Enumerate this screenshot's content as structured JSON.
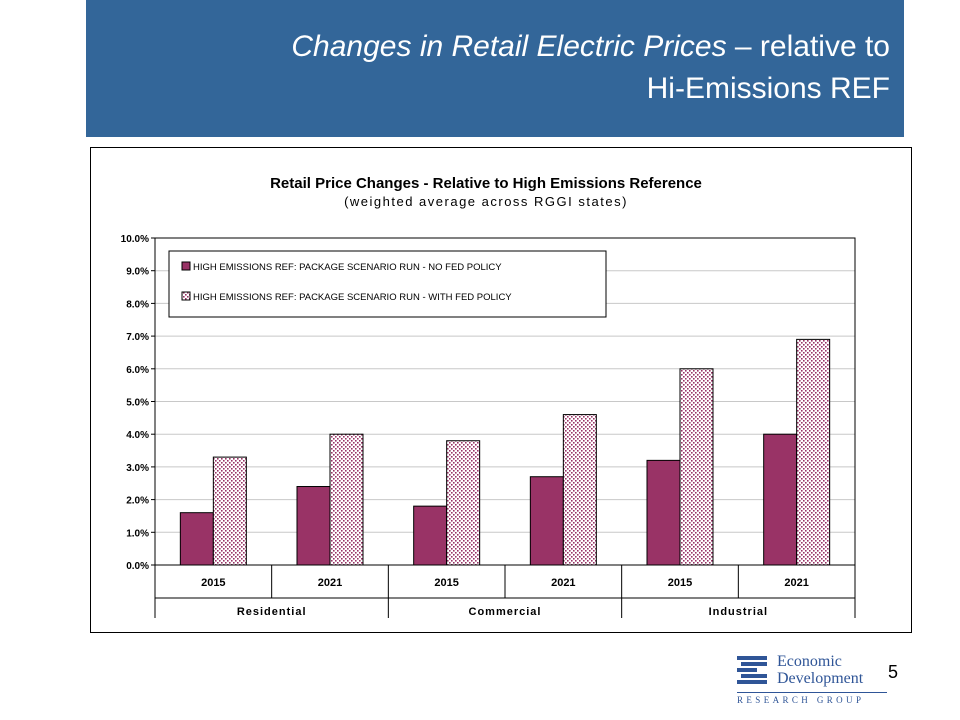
{
  "slide": {
    "title_part1": "Changes in Retail Electric Prices",
    "title_part2": " – relative to",
    "title_line2": "Hi-Emissions REF",
    "page_number": "5"
  },
  "logo": {
    "line1": "Economic",
    "line2": "Development",
    "subline": "RESEARCH GROUP"
  },
  "colors": {
    "header_band": "#336699",
    "series_no_fed": "#993366",
    "series_with_fed_pattern": "#993366"
  },
  "chart_data": {
    "type": "bar",
    "title": "Retail Price Changes - Relative to High Emissions Reference",
    "subtitle": "(weighted average across RGGI states)",
    "categories": [
      "2015",
      "2021",
      "2015",
      "2021",
      "2015",
      "2021"
    ],
    "groups": [
      {
        "label": "Residential",
        "categories": [
          "2015",
          "2021"
        ]
      },
      {
        "label": "Commercial",
        "categories": [
          "2015",
          "2021"
        ]
      },
      {
        "label": "Industrial",
        "categories": [
          "2015",
          "2021"
        ]
      }
    ],
    "series": [
      {
        "name": "HIGH EMISSIONS REF:  PACKAGE SCENARIO RUN - NO FED POLICY",
        "values": [
          1.6,
          2.4,
          1.8,
          2.7,
          3.2,
          4.0
        ],
        "style": "solid"
      },
      {
        "name": "HIGH EMISSIONS REF:  PACKAGE SCENARIO RUN - WITH FED POLICY",
        "values": [
          3.3,
          4.0,
          3.8,
          4.6,
          6.0,
          6.9
        ],
        "style": "dotted"
      }
    ],
    "y_ticks": [
      "0.0%",
      "1.0%",
      "2.0%",
      "3.0%",
      "4.0%",
      "5.0%",
      "6.0%",
      "7.0%",
      "8.0%",
      "9.0%",
      "10.0%"
    ],
    "ylim": [
      0,
      10
    ],
    "y_unit": "%",
    "grid": true,
    "legend_position": "top-left"
  }
}
